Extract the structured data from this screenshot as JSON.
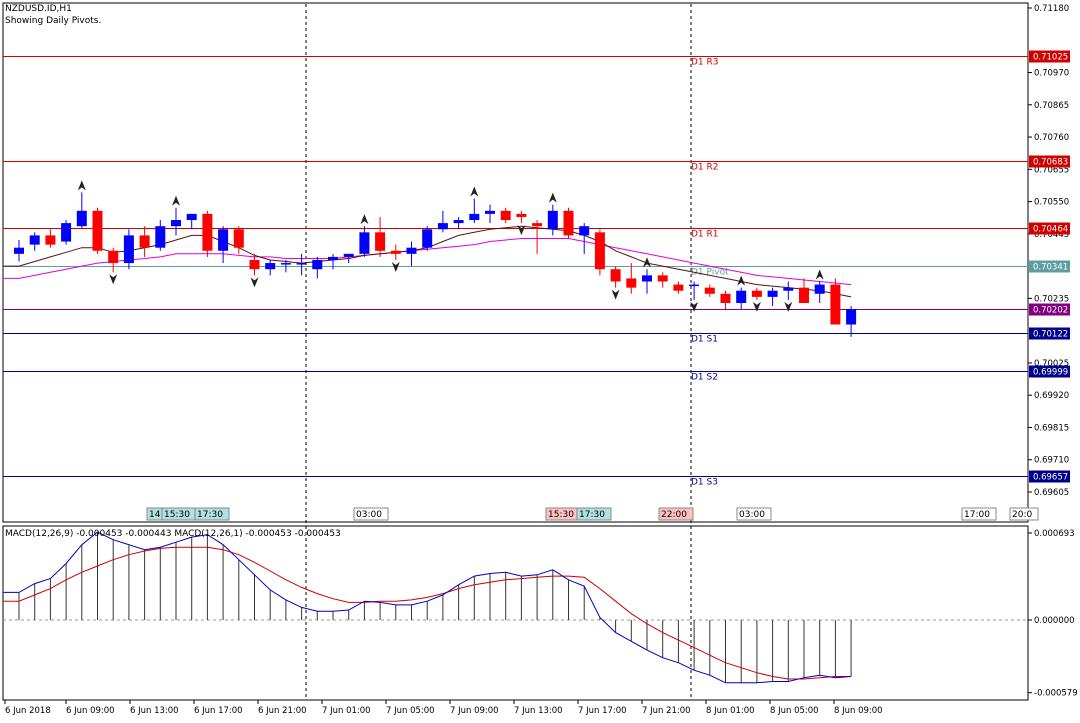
{
  "header": {
    "symbol": "NZDUSD.ID,H1",
    "pivot_note": "Showing Daily Pivots."
  },
  "colors": {
    "bull": "#0000ff",
    "bear": "#ff0000",
    "resistance": "#d00000",
    "support": "#00008b",
    "pivot": "#5f9ea0",
    "current_price": "#800080",
    "ma_slow": "#e000e0",
    "ma_fast": "#5a1010",
    "macd_line": "#0000c0",
    "signal_line": "#d00000"
  },
  "price_axis": {
    "ticks": [
      "0.71180",
      "0.70970",
      "0.70865",
      "0.70760",
      "0.70655",
      "0.70550",
      "0.70445",
      "0.70235",
      "0.70025",
      "0.69920",
      "0.69815",
      "0.69710",
      "0.69605"
    ]
  },
  "levels": [
    {
      "label": "D1 R3",
      "value": 0.71025,
      "tag": "0.71025",
      "kind": "resistance"
    },
    {
      "label": "D1 R2",
      "value": 0.70683,
      "tag": "0.70683",
      "kind": "resistance"
    },
    {
      "label": "D1 R1",
      "value": 0.70464,
      "tag": "0.70464",
      "kind": "resistance"
    },
    {
      "label": "D1 Pivot",
      "value": 0.70341,
      "tag": "0.70341",
      "kind": "pivot"
    },
    {
      "label": "",
      "value": 0.70202,
      "tag": "0.70202",
      "kind": "current_price"
    },
    {
      "label": "D1 S1",
      "value": 0.70122,
      "tag": "0.70122",
      "kind": "support"
    },
    {
      "label": "D1 S2",
      "value": 0.69999,
      "tag": "0.69999",
      "kind": "support"
    },
    {
      "label": "D1 S3",
      "value": 0.69657,
      "tag": "0.69657",
      "kind": "support"
    }
  ],
  "session_tags": [
    {
      "text": "14:",
      "color": "#b0e0e0"
    },
    {
      "text": "15:30",
      "color": "#b0e0e0"
    },
    {
      "text": "17:30",
      "color": "#b0e0e0"
    },
    {
      "text": "03:00",
      "color": "#ffffff"
    },
    {
      "text": "15:30",
      "color": "#ffc0c0"
    },
    {
      "text": "17:30",
      "color": "#b0e0e0"
    },
    {
      "text": "22:00",
      "color": "#ffc0c0"
    },
    {
      "text": "03:00",
      "color": "#ffffff"
    },
    {
      "text": "17:00",
      "color": "#ffffff"
    },
    {
      "text": "20:0",
      "color": "#ffffff"
    }
  ],
  "macd": {
    "title": "MACD(12,26,9) -0.000453 -0.000443 MACD(12,26,1) -0.000453 -0.000453",
    "ticks": [
      "0.000693",
      "0.000000",
      "-0.000579"
    ]
  },
  "time_axis": {
    "labels": [
      "6 Jun 2018",
      "6 Jun 09:00",
      "6 Jun 13:00",
      "6 Jun 17:00",
      "6 Jun 21:00",
      "7 Jun 01:00",
      "7 Jun 05:00",
      "7 Jun 09:00",
      "7 Jun 13:00",
      "7 Jun 17:00",
      "7 Jun 21:00",
      "8 Jun 01:00",
      "8 Jun 05:00",
      "8 Jun 09:00"
    ]
  },
  "chart_data": {
    "type": "candlestick",
    "title": "NZDUSD.ID,H1",
    "candles": [
      [
        0.7038,
        0.70425,
        0.70355,
        0.704
      ],
      [
        0.7041,
        0.7045,
        0.7039,
        0.7044
      ],
      [
        0.7044,
        0.7046,
        0.704,
        0.7041
      ],
      [
        0.7042,
        0.7049,
        0.7041,
        0.7048
      ],
      [
        0.7047,
        0.7058,
        0.7046,
        0.7052
      ],
      [
        0.7052,
        0.7053,
        0.7038,
        0.7039
      ],
      [
        0.7039,
        0.704,
        0.7032,
        0.7035
      ],
      [
        0.7035,
        0.7046,
        0.7033,
        0.7044
      ],
      [
        0.7044,
        0.7047,
        0.7037,
        0.704
      ],
      [
        0.704,
        0.7049,
        0.7039,
        0.7047
      ],
      [
        0.7047,
        0.7053,
        0.7044,
        0.7049
      ],
      [
        0.7049,
        0.7051,
        0.7046,
        0.7051
      ],
      [
        0.7051,
        0.7052,
        0.7037,
        0.7039
      ],
      [
        0.7039,
        0.7047,
        0.7035,
        0.7046
      ],
      [
        0.7046,
        0.7047,
        0.7038,
        0.704
      ],
      [
        0.7036,
        0.7038,
        0.7031,
        0.7033
      ],
      [
        0.7033,
        0.7036,
        0.7031,
        0.7035
      ],
      [
        0.7035,
        0.7036,
        0.7032,
        0.7035
      ],
      [
        0.7035,
        0.7038,
        0.7031,
        0.7035
      ],
      [
        0.7033,
        0.7037,
        0.703,
        0.7036
      ],
      [
        0.7036,
        0.7038,
        0.7033,
        0.7037
      ],
      [
        0.7037,
        0.7038,
        0.7035,
        0.7038
      ],
      [
        0.7038,
        0.7047,
        0.7037,
        0.7045
      ],
      [
        0.7045,
        0.705,
        0.7037,
        0.7039
      ],
      [
        0.7039,
        0.7041,
        0.7036,
        0.7038
      ],
      [
        0.7038,
        0.7042,
        0.7034,
        0.704
      ],
      [
        0.704,
        0.7047,
        0.7039,
        0.7046
      ],
      [
        0.7046,
        0.7052,
        0.7045,
        0.7048
      ],
      [
        0.7048,
        0.705,
        0.7046,
        0.7049
      ],
      [
        0.7049,
        0.7056,
        0.7048,
        0.7051
      ],
      [
        0.7051,
        0.7054,
        0.7048,
        0.7052
      ],
      [
        0.7052,
        0.7053,
        0.7048,
        0.7049
      ],
      [
        0.7051,
        0.7052,
        0.7048,
        0.705
      ],
      [
        0.7048,
        0.7049,
        0.7038,
        0.7047
      ],
      [
        0.7046,
        0.7054,
        0.7044,
        0.7052
      ],
      [
        0.7052,
        0.7053,
        0.7043,
        0.7044
      ],
      [
        0.7044,
        0.7048,
        0.7038,
        0.7047
      ],
      [
        0.7045,
        0.7046,
        0.7031,
        0.7033
      ],
      [
        0.7033,
        0.7034,
        0.7027,
        0.7029
      ],
      [
        0.703,
        0.7035,
        0.7025,
        0.7027
      ],
      [
        0.7029,
        0.7033,
        0.7025,
        0.7031
      ],
      [
        0.7031,
        0.7032,
        0.7027,
        0.7029
      ],
      [
        0.7028,
        0.7029,
        0.7025,
        0.7026
      ],
      [
        0.7028,
        0.7029,
        0.7023,
        0.7028
      ],
      [
        0.7027,
        0.7028,
        0.7024,
        0.7025
      ],
      [
        0.7025,
        0.7026,
        0.702,
        0.7022
      ],
      [
        0.7022,
        0.7027,
        0.702,
        0.7026
      ],
      [
        0.7026,
        0.7027,
        0.7023,
        0.7024
      ],
      [
        0.7024,
        0.7027,
        0.7021,
        0.7026
      ],
      [
        0.7026,
        0.7029,
        0.7023,
        0.7027
      ],
      [
        0.7027,
        0.703,
        0.7022,
        0.7022
      ],
      [
        0.7025,
        0.7029,
        0.7022,
        0.7028
      ],
      [
        0.7028,
        0.703,
        0.7015,
        0.7015
      ],
      [
        0.7015,
        0.7021,
        0.7011,
        0.702
      ]
    ],
    "ma_slow": [
      0.703,
      0.7031,
      0.7032,
      0.7033,
      0.7034,
      0.7035,
      0.70355,
      0.7036,
      0.70365,
      0.7037,
      0.7038,
      0.7038,
      0.7038,
      0.7038,
      0.70375,
      0.7037,
      0.7037,
      0.70365,
      0.70365,
      0.70365,
      0.70365,
      0.7037,
      0.70375,
      0.7038,
      0.70385,
      0.7039,
      0.70395,
      0.704,
      0.70405,
      0.7041,
      0.7042,
      0.70425,
      0.7043,
      0.7043,
      0.7043,
      0.7043,
      0.7042,
      0.7041,
      0.704,
      0.7039,
      0.7038,
      0.7037,
      0.7036,
      0.7035,
      0.7034,
      0.7033,
      0.7032,
      0.7031,
      0.70305,
      0.703,
      0.70295,
      0.7029,
      0.70285,
      0.7028
    ],
    "ma_fast": [
      0.7034,
      0.70355,
      0.7037,
      0.70385,
      0.704,
      0.704,
      0.70385,
      0.7039,
      0.704,
      0.7041,
      0.70425,
      0.7044,
      0.7044,
      0.7042,
      0.704,
      0.70375,
      0.7036,
      0.70355,
      0.7035,
      0.70355,
      0.7036,
      0.70365,
      0.70375,
      0.7038,
      0.70385,
      0.7039,
      0.704,
      0.7042,
      0.7044,
      0.7045,
      0.7046,
      0.70465,
      0.7047,
      0.70465,
      0.7046,
      0.70455,
      0.7044,
      0.7042,
      0.7039,
      0.7037,
      0.7035,
      0.7034,
      0.7033,
      0.7032,
      0.7031,
      0.703,
      0.7029,
      0.7028,
      0.70275,
      0.7027,
      0.70265,
      0.7026,
      0.7025,
      0.7024
    ],
    "macd_line": [
      0.00022,
      0.00029,
      0.00033,
      0.00045,
      0.0006,
      0.0007,
      0.00064,
      0.0006,
      0.00056,
      0.00058,
      0.00062,
      0.00066,
      0.00068,
      0.0006,
      0.00048,
      0.00036,
      0.00024,
      0.00016,
      0.0001,
      7e-05,
      7e-05,
      8e-05,
      0.00015,
      0.00014,
      0.00012,
      0.00012,
      0.00015,
      0.0002,
      0.00028,
      0.00035,
      0.00037,
      0.00038,
      0.00035,
      0.00036,
      0.0004,
      0.00032,
      0.00027,
      2e-05,
      -0.0001,
      -0.00017,
      -0.00024,
      -0.0003,
      -0.00034,
      -0.0004,
      -0.00044,
      -0.0005,
      -0.0005,
      -0.0005,
      -0.00049,
      -0.00049,
      -0.00046,
      -0.00044,
      -0.00046,
      -0.00045
    ],
    "signal_line": [
      0.00015,
      0.0002,
      0.00025,
      0.00032,
      0.00038,
      0.00043,
      0.00048,
      0.00052,
      0.00055,
      0.00057,
      0.00058,
      0.00058,
      0.00058,
      0.00056,
      0.00052,
      0.00046,
      0.00039,
      0.00032,
      0.00026,
      0.00021,
      0.00017,
      0.00014,
      0.00014,
      0.00015,
      0.00015,
      0.00016,
      0.00018,
      0.00021,
      0.00025,
      0.00028,
      0.0003,
      0.00032,
      0.00033,
      0.00034,
      0.00035,
      0.00035,
      0.00034,
      0.00025,
      0.00015,
      5e-05,
      -3e-05,
      -0.0001,
      -0.00016,
      -0.00022,
      -0.00028,
      -0.00034,
      -0.00038,
      -0.00042,
      -0.00045,
      -0.00047,
      -0.00047,
      -0.00046,
      -0.00045,
      -0.00045
    ],
    "fractals_up": [
      4,
      10,
      22,
      29,
      34,
      40,
      46,
      51
    ],
    "fractals_down": [
      6,
      15,
      24,
      32,
      38,
      43,
      47,
      49
    ]
  }
}
